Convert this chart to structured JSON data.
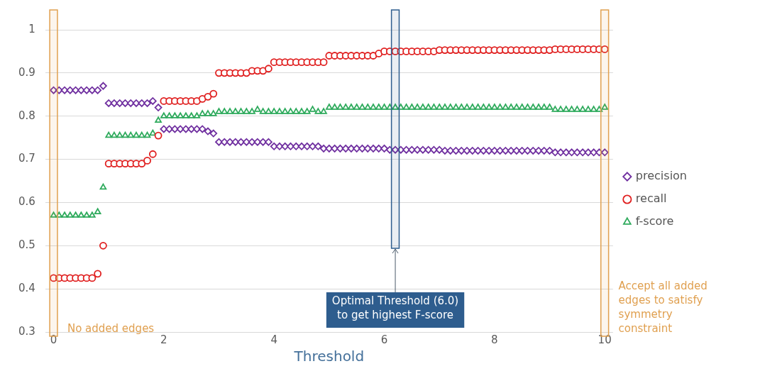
{
  "chart_data": {
    "type": "scatter",
    "xlabel": "Threshold",
    "x": [
      0,
      0.1,
      0.2,
      0.3,
      0.4,
      0.5,
      0.6,
      0.7,
      0.8,
      0.9,
      1,
      1.1,
      1.2,
      1.3,
      1.4,
      1.5,
      1.6,
      1.7,
      1.8,
      1.9,
      2,
      2.1,
      2.2,
      2.3,
      2.4,
      2.5,
      2.6,
      2.7,
      2.8,
      2.9,
      3,
      3.1,
      3.2,
      3.3,
      3.4,
      3.5,
      3.6,
      3.7,
      3.8,
      3.9,
      4,
      4.1,
      4.2,
      4.3,
      4.4,
      4.5,
      4.6,
      4.7,
      4.8,
      4.9,
      5,
      5.1,
      5.2,
      5.3,
      5.4,
      5.5,
      5.6,
      5.7,
      5.8,
      5.9,
      6,
      6.1,
      6.2,
      6.3,
      6.4,
      6.5,
      6.6,
      6.7,
      6.8,
      6.9,
      7,
      7.1,
      7.2,
      7.3,
      7.4,
      7.5,
      7.6,
      7.7,
      7.8,
      7.9,
      8,
      8.1,
      8.2,
      8.3,
      8.4,
      8.5,
      8.6,
      8.7,
      8.8,
      8.9,
      9,
      9.1,
      9.2,
      9.3,
      9.4,
      9.5,
      9.6,
      9.7,
      9.8,
      9.9,
      10
    ],
    "series": [
      {
        "name": "precision",
        "color": "#7030a0",
        "marker": "diamond",
        "values": [
          0.86,
          0.86,
          0.86,
          0.86,
          0.86,
          0.86,
          0.86,
          0.86,
          0.86,
          0.87,
          0.83,
          0.83,
          0.83,
          0.83,
          0.83,
          0.83,
          0.83,
          0.83,
          0.835,
          0.82,
          0.77,
          0.77,
          0.77,
          0.77,
          0.77,
          0.77,
          0.77,
          0.77,
          0.765,
          0.76,
          0.74,
          0.74,
          0.74,
          0.74,
          0.74,
          0.74,
          0.74,
          0.74,
          0.74,
          0.74,
          0.73,
          0.73,
          0.73,
          0.73,
          0.73,
          0.73,
          0.73,
          0.73,
          0.73,
          0.725,
          0.725,
          0.725,
          0.725,
          0.725,
          0.725,
          0.725,
          0.725,
          0.725,
          0.725,
          0.725,
          0.725,
          0.722,
          0.722,
          0.722,
          0.722,
          0.722,
          0.722,
          0.722,
          0.722,
          0.722,
          0.722,
          0.72,
          0.72,
          0.72,
          0.72,
          0.72,
          0.72,
          0.72,
          0.72,
          0.72,
          0.72,
          0.72,
          0.72,
          0.72,
          0.72,
          0.72,
          0.72,
          0.72,
          0.72,
          0.72,
          0.72,
          0.716,
          0.716,
          0.716,
          0.716,
          0.716,
          0.716,
          0.716,
          0.716,
          0.716,
          0.716
        ]
      },
      {
        "name": "recall",
        "color": "#e02020",
        "marker": "circle",
        "values": [
          0.425,
          0.425,
          0.425,
          0.425,
          0.425,
          0.425,
          0.425,
          0.425,
          0.435,
          0.5,
          0.69,
          0.69,
          0.69,
          0.69,
          0.69,
          0.69,
          0.69,
          0.697,
          0.712,
          0.755,
          0.835,
          0.835,
          0.835,
          0.835,
          0.835,
          0.835,
          0.835,
          0.84,
          0.845,
          0.852,
          0.9,
          0.9,
          0.9,
          0.9,
          0.9,
          0.9,
          0.905,
          0.905,
          0.905,
          0.91,
          0.925,
          0.925,
          0.925,
          0.925,
          0.925,
          0.925,
          0.925,
          0.925,
          0.925,
          0.925,
          0.94,
          0.94,
          0.94,
          0.94,
          0.94,
          0.94,
          0.94,
          0.94,
          0.94,
          0.945,
          0.95,
          0.95,
          0.95,
          0.95,
          0.95,
          0.95,
          0.95,
          0.95,
          0.95,
          0.95,
          0.953,
          0.953,
          0.953,
          0.953,
          0.953,
          0.953,
          0.953,
          0.953,
          0.953,
          0.953,
          0.953,
          0.953,
          0.953,
          0.953,
          0.953,
          0.953,
          0.953,
          0.953,
          0.953,
          0.953,
          0.953,
          0.955,
          0.955,
          0.955,
          0.955,
          0.955,
          0.955,
          0.955,
          0.955,
          0.955,
          0.955
        ]
      },
      {
        "name": "f-score",
        "color": "#2eaa5c",
        "marker": "triangle",
        "values": [
          0.57,
          0.57,
          0.57,
          0.57,
          0.57,
          0.57,
          0.57,
          0.57,
          0.578,
          0.635,
          0.755,
          0.755,
          0.755,
          0.755,
          0.755,
          0.755,
          0.755,
          0.755,
          0.76,
          0.79,
          0.8,
          0.8,
          0.8,
          0.8,
          0.8,
          0.8,
          0.8,
          0.805,
          0.805,
          0.805,
          0.81,
          0.81,
          0.81,
          0.81,
          0.81,
          0.81,
          0.81,
          0.815,
          0.81,
          0.81,
          0.81,
          0.81,
          0.81,
          0.81,
          0.81,
          0.81,
          0.81,
          0.815,
          0.81,
          0.81,
          0.82,
          0.82,
          0.82,
          0.82,
          0.82,
          0.82,
          0.82,
          0.82,
          0.82,
          0.82,
          0.82,
          0.82,
          0.82,
          0.82,
          0.82,
          0.82,
          0.82,
          0.82,
          0.82,
          0.82,
          0.82,
          0.82,
          0.82,
          0.82,
          0.82,
          0.82,
          0.82,
          0.82,
          0.82,
          0.82,
          0.82,
          0.82,
          0.82,
          0.82,
          0.82,
          0.82,
          0.82,
          0.82,
          0.82,
          0.82,
          0.82,
          0.815,
          0.815,
          0.815,
          0.815,
          0.815,
          0.815,
          0.815,
          0.815,
          0.815,
          0.82
        ]
      }
    ],
    "xlim": [
      -0.15,
      10.15
    ],
    "xticks": [
      0,
      2,
      4,
      6,
      8,
      10
    ],
    "ylim": [
      0.3,
      1
    ],
    "yticks": [
      0.3,
      0.4,
      0.5,
      0.6,
      0.7,
      0.8,
      0.9,
      1
    ],
    "grid": "y",
    "legend": "right",
    "bands": [
      {
        "axis": "x",
        "from": -0.07,
        "to": 0.07,
        "label": "No added edges",
        "color": "#e0a050"
      },
      {
        "axis": "x",
        "from": 9.93,
        "to": 10.07,
        "label": "Accept all added edges to satisfy symmetry constraint",
        "color": "#e0a050"
      },
      {
        "axis": "x",
        "from": 6.13,
        "to": 6.27,
        "label": "Optimal Threshold (6.0) to get highest F-score",
        "color": "#2e5d8e"
      }
    ]
  }
}
